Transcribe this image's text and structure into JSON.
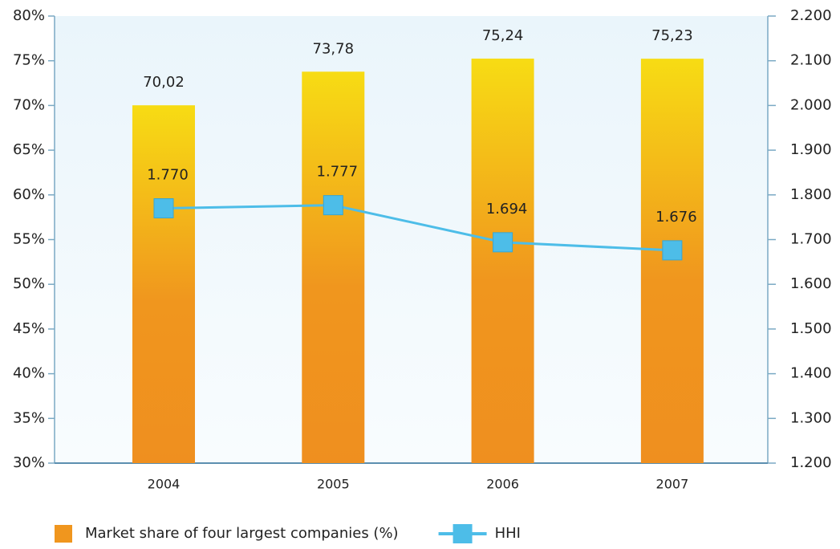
{
  "chart_data": {
    "type": "bar",
    "categories": [
      "2004",
      "2005",
      "2006",
      "2007"
    ],
    "series": [
      {
        "name": "Market share of four largest companies (%)",
        "color": "#f0961e",
        "values": [
          70.02,
          73.78,
          75.24,
          75.23
        ],
        "value_labels": [
          "70,02",
          "73,78",
          "75,24",
          "75,23"
        ]
      },
      {
        "name": "HHI",
        "color": "#4dbde8",
        "values": [
          1770,
          1777,
          1694,
          1676
        ],
        "value_labels": [
          "1.770",
          "1.777",
          "1.694",
          "1.676"
        ],
        "axis": "y2"
      }
    ],
    "ylim": [
      30,
      80
    ],
    "yticks": [
      {
        "value": 30,
        "label": "30%"
      },
      {
        "value": 35,
        "label": "35%"
      },
      {
        "value": 40,
        "label": "40%"
      },
      {
        "value": 45,
        "label": "45%"
      },
      {
        "value": 50,
        "label": "50%"
      },
      {
        "value": 55,
        "label": "55%"
      },
      {
        "value": 60,
        "label": "60%"
      },
      {
        "value": 65,
        "label": "65%"
      },
      {
        "value": 70,
        "label": "70%"
      },
      {
        "value": 75,
        "label": "75%"
      },
      {
        "value": 80,
        "label": "80%"
      }
    ],
    "y2lim": [
      1200,
      2200
    ],
    "y2ticks": [
      {
        "value": 1200,
        "label": "1.200"
      },
      {
        "value": 1300,
        "label": "1.300"
      },
      {
        "value": 1400,
        "label": "1.400"
      },
      {
        "value": 1500,
        "label": "1.500"
      },
      {
        "value": 1600,
        "label": "1.600"
      },
      {
        "value": 1700,
        "label": "1.700"
      },
      {
        "value": 1800,
        "label": "1.800"
      },
      {
        "value": 1900,
        "label": "1.900"
      },
      {
        "value": 2000,
        "label": "2.000"
      },
      {
        "value": 2100,
        "label": "2.100"
      },
      {
        "value": 2200,
        "label": "2.200"
      }
    ],
    "legend": "bottom-left"
  }
}
